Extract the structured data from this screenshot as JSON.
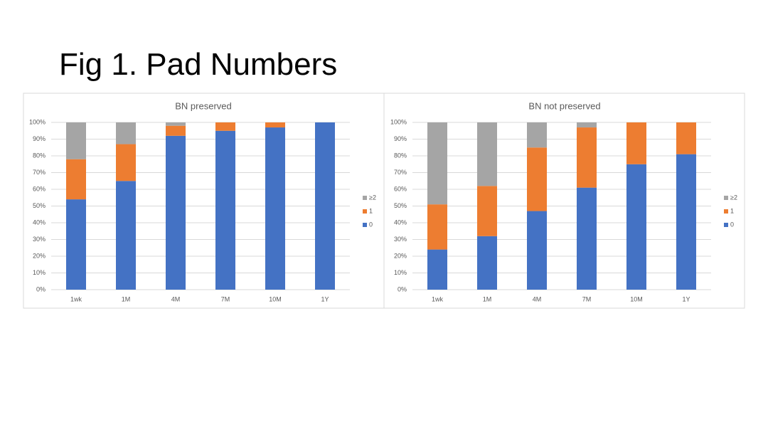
{
  "title": "Fig 1. Pad Numbers",
  "chart_data": [
    {
      "type": "bar",
      "stacked": true,
      "title": "BN preserved",
      "categories": [
        "1wk",
        "1M",
        "4M",
        "7M",
        "10M",
        "1Y"
      ],
      "series": [
        {
          "name": "0",
          "color": "#4472c4",
          "values": [
            54,
            65,
            92,
            95,
            97,
            100
          ]
        },
        {
          "name": "1",
          "color": "#ed7d31",
          "values": [
            24,
            22,
            6,
            5,
            3,
            0
          ]
        },
        {
          "name": "≥2",
          "color": "#a5a5a5",
          "values": [
            22,
            13,
            2,
            0,
            0,
            0
          ]
        }
      ],
      "ylim": [
        0,
        100
      ],
      "yticks": [
        {
          "value": 0,
          "label": "0%"
        },
        {
          "value": 10,
          "label": "10%"
        },
        {
          "value": 20,
          "label": "20%"
        },
        {
          "value": 30,
          "label": "30%"
        },
        {
          "value": 40,
          "label": "40%"
        },
        {
          "value": 50,
          "label": "50%"
        },
        {
          "value": 60,
          "label": "60%"
        },
        {
          "value": 70,
          "label": "70%"
        },
        {
          "value": 80,
          "label": "80%"
        },
        {
          "value": 90,
          "label": "90%"
        },
        {
          "value": 100,
          "label": "100%"
        }
      ],
      "grid": true,
      "legend": "right"
    },
    {
      "type": "bar",
      "stacked": true,
      "title": "BN not preserved",
      "categories": [
        "1wk",
        "1M",
        "4M",
        "7M",
        "10M",
        "1Y"
      ],
      "series": [
        {
          "name": "0",
          "color": "#4472c4",
          "values": [
            24,
            32,
            47,
            61,
            75,
            81
          ]
        },
        {
          "name": "1",
          "color": "#ed7d31",
          "values": [
            27,
            30,
            38,
            36,
            25,
            19
          ]
        },
        {
          "name": "≥2",
          "color": "#a5a5a5",
          "values": [
            49,
            38,
            15,
            3,
            0,
            0
          ]
        }
      ],
      "ylim": [
        0,
        100
      ],
      "yticks": [
        {
          "value": 0,
          "label": "0%"
        },
        {
          "value": 10,
          "label": "10%"
        },
        {
          "value": 20,
          "label": "20%"
        },
        {
          "value": 30,
          "label": "30%"
        },
        {
          "value": 40,
          "label": "40%"
        },
        {
          "value": 50,
          "label": "50%"
        },
        {
          "value": 60,
          "label": "60%"
        },
        {
          "value": 70,
          "label": "70%"
        },
        {
          "value": 80,
          "label": "80%"
        },
        {
          "value": 90,
          "label": "90%"
        },
        {
          "value": 100,
          "label": "100%"
        }
      ],
      "grid": true,
      "legend": "right"
    }
  ]
}
